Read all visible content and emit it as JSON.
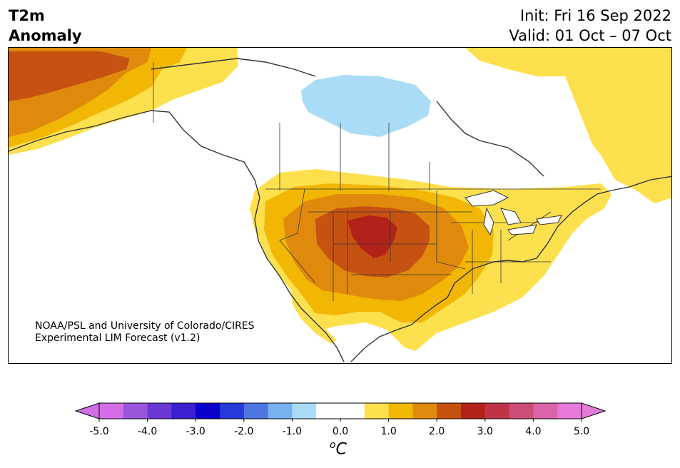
{
  "header": {
    "variable": "T2m",
    "product": "Anomaly",
    "init": "Init: Fri 16 Sep 2022",
    "valid": "Valid: 01 Oct – 07 Oct"
  },
  "credit": {
    "line1": "NOAA/PSL and University of Colorado/CIRES",
    "line2": "Experimental LIM Forecast (v1.2)"
  },
  "colorbar": {
    "unit_symbol": "o",
    "unit_letter": "C",
    "ticks": [
      "-5.0",
      "-4.0",
      "-3.0",
      "-2.0",
      "-1.0",
      "0.0",
      "1.0",
      "2.0",
      "3.0",
      "4.0",
      "5.0"
    ],
    "colors": [
      "#d36ee6",
      "#9a55dd",
      "#6b38d6",
      "#3a20cf",
      "#0a00cc",
      "#2639d9",
      "#4d76e0",
      "#78b2ee",
      "#abdcf7",
      "#ffffff",
      "#ffffff",
      "#fde04d",
      "#f2b705",
      "#e08a0d",
      "#c65211",
      "#b3221a",
      "#bf3346",
      "#cc4d77",
      "#d964a8",
      "#e67ad9"
    ],
    "under_color": "#d36ee6",
    "over_color": "#e67ad9"
  },
  "map": {
    "region": "North America",
    "anomaly_colors": {
      "warm1": "#fde04d",
      "warm2": "#f2b705",
      "warm3": "#e08a0d",
      "warm4": "#c65211",
      "warm5": "#b3221a",
      "cool1": "#abdcf7"
    }
  }
}
